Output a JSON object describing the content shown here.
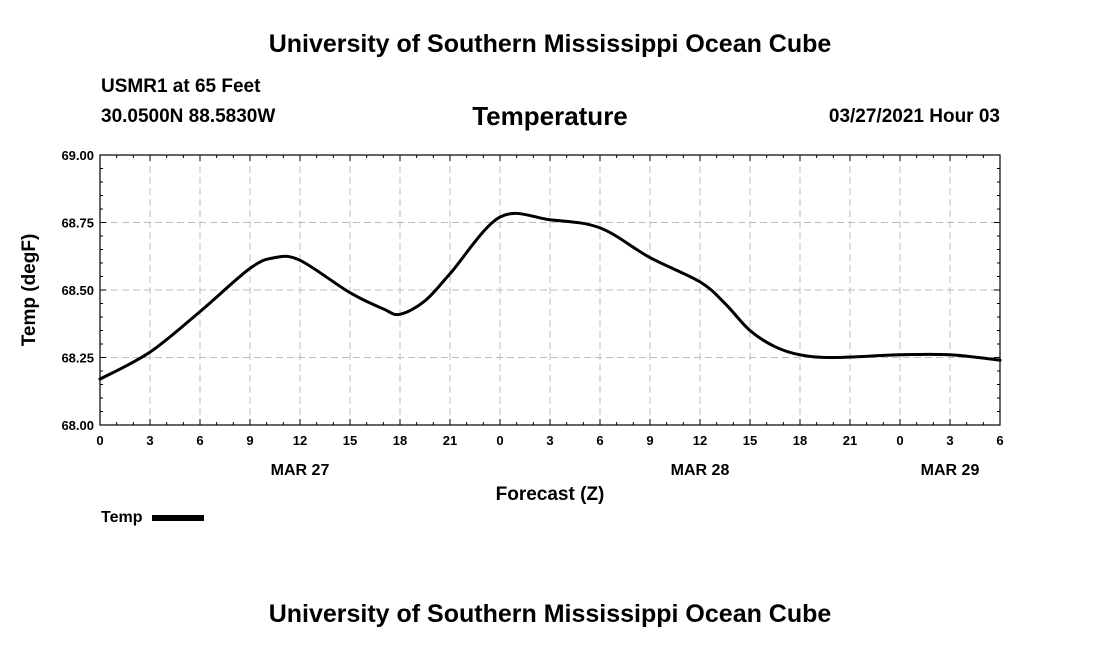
{
  "header": {
    "title": "University of Southern Mississippi Ocean Cube",
    "station": "USMR1 at 65 Feet",
    "coords": "30.0500N  88.5830W",
    "variable": "Temperature",
    "datetime": "03/27/2021 Hour 03"
  },
  "footer": {
    "title": "University of Southern Mississippi Ocean Cube"
  },
  "chart_data": {
    "type": "line",
    "title": "Temperature",
    "xlabel": "Forecast (Z)",
    "ylabel": "Temp (degF)",
    "ylim": [
      68.0,
      69.0
    ],
    "xlim_hours": [
      0,
      54
    ],
    "y_ticks": [
      "68.00",
      "68.25",
      "68.50",
      "68.75",
      "69.00"
    ],
    "x_ticks": [
      "0",
      "3",
      "6",
      "9",
      "12",
      "15",
      "18",
      "21",
      "0",
      "3",
      "6",
      "9",
      "12",
      "15",
      "18",
      "21",
      "0",
      "3",
      "6"
    ],
    "date_labels": [
      {
        "label": "MAR 27",
        "hour": 12
      },
      {
        "label": "MAR 28",
        "hour": 36
      },
      {
        "label": "MAR 29",
        "hour": 51
      }
    ],
    "grid": true,
    "legend_position": "bottom-left",
    "series": [
      {
        "name": "Temp",
        "color": "#000000",
        "x": [
          0,
          3,
          6,
          9,
          10.5,
          12,
          15,
          17,
          18,
          19.5,
          21,
          24,
          27,
          30,
          33,
          36,
          37.5,
          39,
          40.5,
          42,
          44,
          48,
          51,
          54
        ],
        "y": [
          68.17,
          68.27,
          68.42,
          68.58,
          68.62,
          68.61,
          68.49,
          68.43,
          68.41,
          68.46,
          68.56,
          68.77,
          68.76,
          68.73,
          68.62,
          68.53,
          68.45,
          68.35,
          68.29,
          68.26,
          68.25,
          68.26,
          68.26,
          68.24
        ]
      }
    ]
  }
}
